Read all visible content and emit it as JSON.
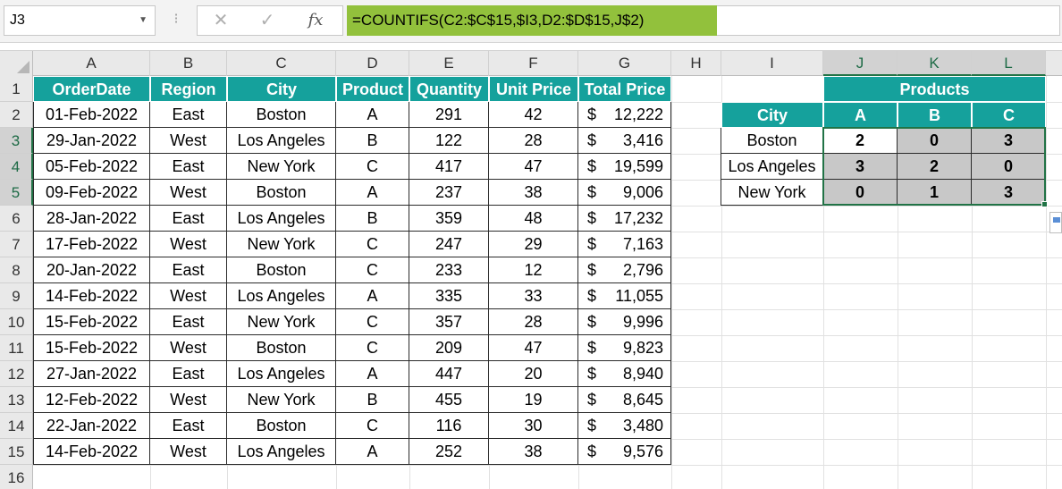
{
  "formula_bar": {
    "name_box": "J3",
    "dots": "⁝",
    "cancel": "✕",
    "enter": "✓",
    "fx": "fx",
    "formula": "=COUNTIFS(C2:$C$15,$I3,D2:$D$15,J$2)"
  },
  "columns": [
    "A",
    "B",
    "C",
    "D",
    "E",
    "F",
    "G",
    "H",
    "I",
    "J",
    "K",
    "L"
  ],
  "rows": [
    "1",
    "2",
    "3",
    "4",
    "5",
    "6",
    "7",
    "8",
    "9",
    "10",
    "11",
    "12",
    "13",
    "14",
    "15",
    "16"
  ],
  "table": {
    "headers": [
      "OrderDate",
      "Region",
      "City",
      "Product",
      "Quantity",
      "Unit Price",
      "Total Price"
    ],
    "currency_symbol": "$",
    "rows": [
      [
        "01-Feb-2022",
        "East",
        "Boston",
        "A",
        "291",
        "42",
        "12,222"
      ],
      [
        "29-Jan-2022",
        "West",
        "Los Angeles",
        "B",
        "122",
        "28",
        "3,416"
      ],
      [
        "05-Feb-2022",
        "East",
        "New York",
        "C",
        "417",
        "47",
        "19,599"
      ],
      [
        "09-Feb-2022",
        "West",
        "Boston",
        "A",
        "237",
        "38",
        "9,006"
      ],
      [
        "28-Jan-2022",
        "East",
        "Los Angeles",
        "B",
        "359",
        "48",
        "17,232"
      ],
      [
        "17-Feb-2022",
        "West",
        "New York",
        "C",
        "247",
        "29",
        "7,163"
      ],
      [
        "20-Jan-2022",
        "East",
        "Boston",
        "C",
        "233",
        "12",
        "2,796"
      ],
      [
        "14-Feb-2022",
        "West",
        "Los Angeles",
        "A",
        "335",
        "33",
        "11,055"
      ],
      [
        "15-Feb-2022",
        "East",
        "New York",
        "C",
        "357",
        "28",
        "9,996"
      ],
      [
        "15-Feb-2022",
        "West",
        "Boston",
        "C",
        "209",
        "47",
        "9,823"
      ],
      [
        "27-Jan-2022",
        "East",
        "Los Angeles",
        "A",
        "447",
        "20",
        "8,940"
      ],
      [
        "12-Feb-2022",
        "West",
        "New York",
        "B",
        "455",
        "19",
        "8,645"
      ],
      [
        "22-Jan-2022",
        "East",
        "Boston",
        "C",
        "116",
        "30",
        "3,480"
      ],
      [
        "14-Feb-2022",
        "West",
        "Los Angeles",
        "A",
        "252",
        "38",
        "9,576"
      ]
    ]
  },
  "summary": {
    "group_header": "Products",
    "city_header": "City",
    "products": [
      "A",
      "B",
      "C"
    ],
    "rows": [
      {
        "city": "Boston",
        "counts": [
          "2",
          "0",
          "3"
        ]
      },
      {
        "city": "Los Angeles",
        "counts": [
          "3",
          "2",
          "0"
        ]
      },
      {
        "city": "New York",
        "counts": [
          "0",
          "1",
          "3"
        ]
      }
    ]
  },
  "colors": {
    "header_teal": "#15a19c",
    "formula_highlight": "#92c13c",
    "selection_green": "#217346"
  }
}
